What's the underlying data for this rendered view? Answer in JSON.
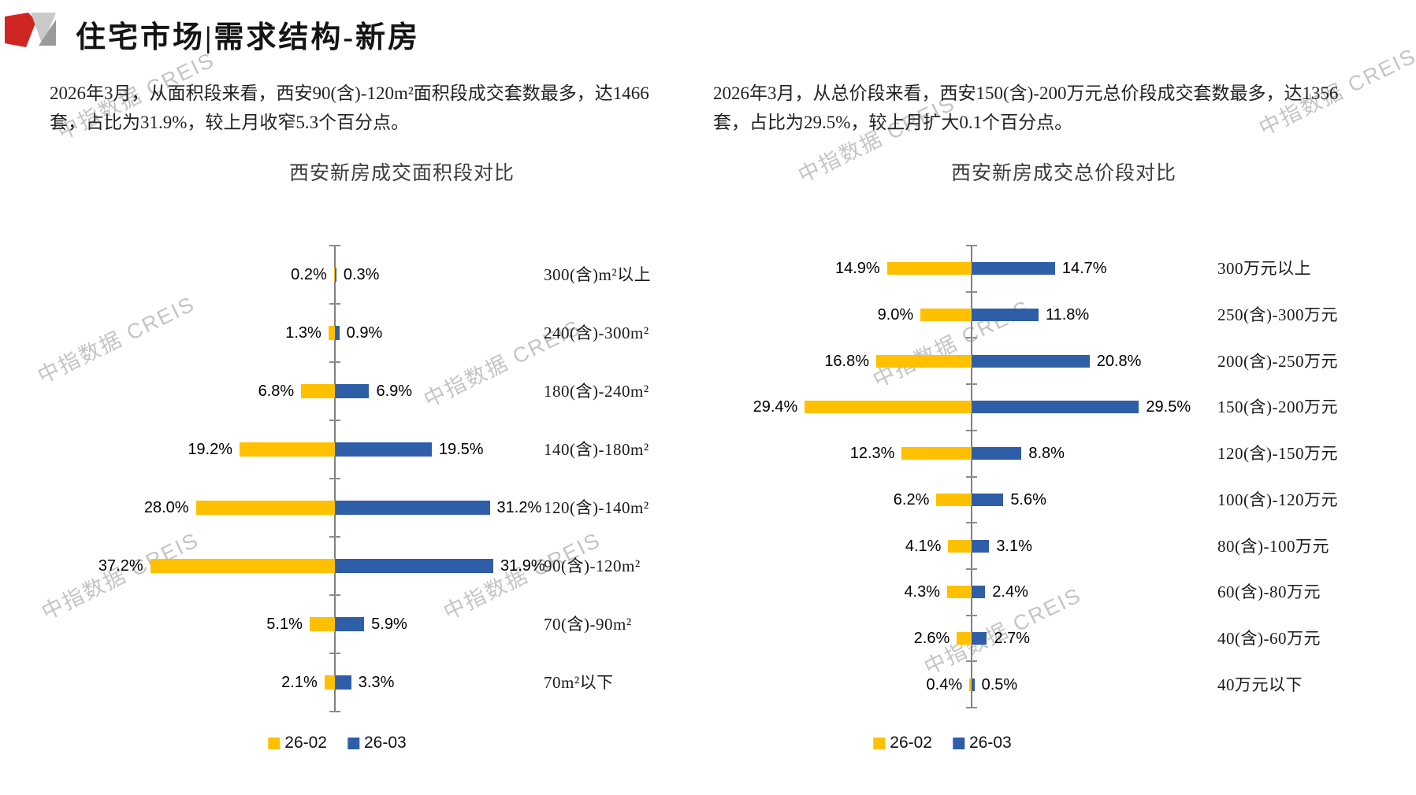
{
  "header": {
    "title": "住宅市场|需求结构-新房"
  },
  "watermark": {
    "text": "中指数据 CREIS"
  },
  "left_panel": {
    "summary": "2026年3月，从面积段来看，西安90(含)-120m²面积段成交套数最多，达1466套，占比为31.9%，较上月收窄5.3个百分点。",
    "chart_title": "西安新房成交面积段对比"
  },
  "right_panel": {
    "summary": "2026年3月，从总价段来看，西安150(含)-200万元总价段成交套数最多，达1356套，占比为29.5%，较上月扩大0.1个百分点。",
    "chart_title": "西安新房成交总价段对比"
  },
  "colors": {
    "series_26_02": "#FFC000",
    "series_26_03": "#2E5EA8",
    "axis": "#808080",
    "accent_red": "#D02623",
    "logo_gray_light": "#C9C9C9",
    "logo_gray_dark": "#9A9A9A"
  },
  "chart_data": [
    {
      "type": "bar",
      "variant": "tornado",
      "title": "西安新房成交面积段对比",
      "unit": "%",
      "legend_position": "bottom",
      "categories": [
        "300(含)m²以上",
        "240(含)-300m²",
        "180(含)-240m²",
        "140(含)-180m²",
        "120(含)-140m²",
        "90(含)-120m²",
        "70(含)-90m²",
        "70m²以下"
      ],
      "series": [
        {
          "name": "26-02",
          "side": "left",
          "color": "#FFC000",
          "values": [
            0.2,
            1.3,
            6.8,
            19.2,
            28.0,
            37.2,
            5.1,
            2.1
          ]
        },
        {
          "name": "26-03",
          "side": "right",
          "color": "#2E5EA8",
          "values": [
            0.3,
            0.9,
            6.9,
            19.5,
            31.2,
            31.9,
            5.9,
            3.3
          ]
        }
      ]
    },
    {
      "type": "bar",
      "variant": "tornado",
      "title": "西安新房成交总价段对比",
      "unit": "%",
      "legend_position": "bottom",
      "categories": [
        "300万元以上",
        "250(含)-300万元",
        "200(含)-250万元",
        "150(含)-200万元",
        "120(含)-150万元",
        "100(含)-120万元",
        "80(含)-100万元",
        "60(含)-80万元",
        "40(含)-60万元",
        "40万元以下"
      ],
      "series": [
        {
          "name": "26-02",
          "side": "left",
          "color": "#FFC000",
          "values": [
            14.9,
            9.0,
            16.8,
            29.4,
            12.3,
            6.2,
            4.1,
            4.3,
            2.6,
            0.4
          ]
        },
        {
          "name": "26-03",
          "side": "right",
          "color": "#2E5EA8",
          "values": [
            14.7,
            11.8,
            20.8,
            29.5,
            8.8,
            5.6,
            3.1,
            2.4,
            2.7,
            0.5
          ]
        }
      ]
    }
  ]
}
